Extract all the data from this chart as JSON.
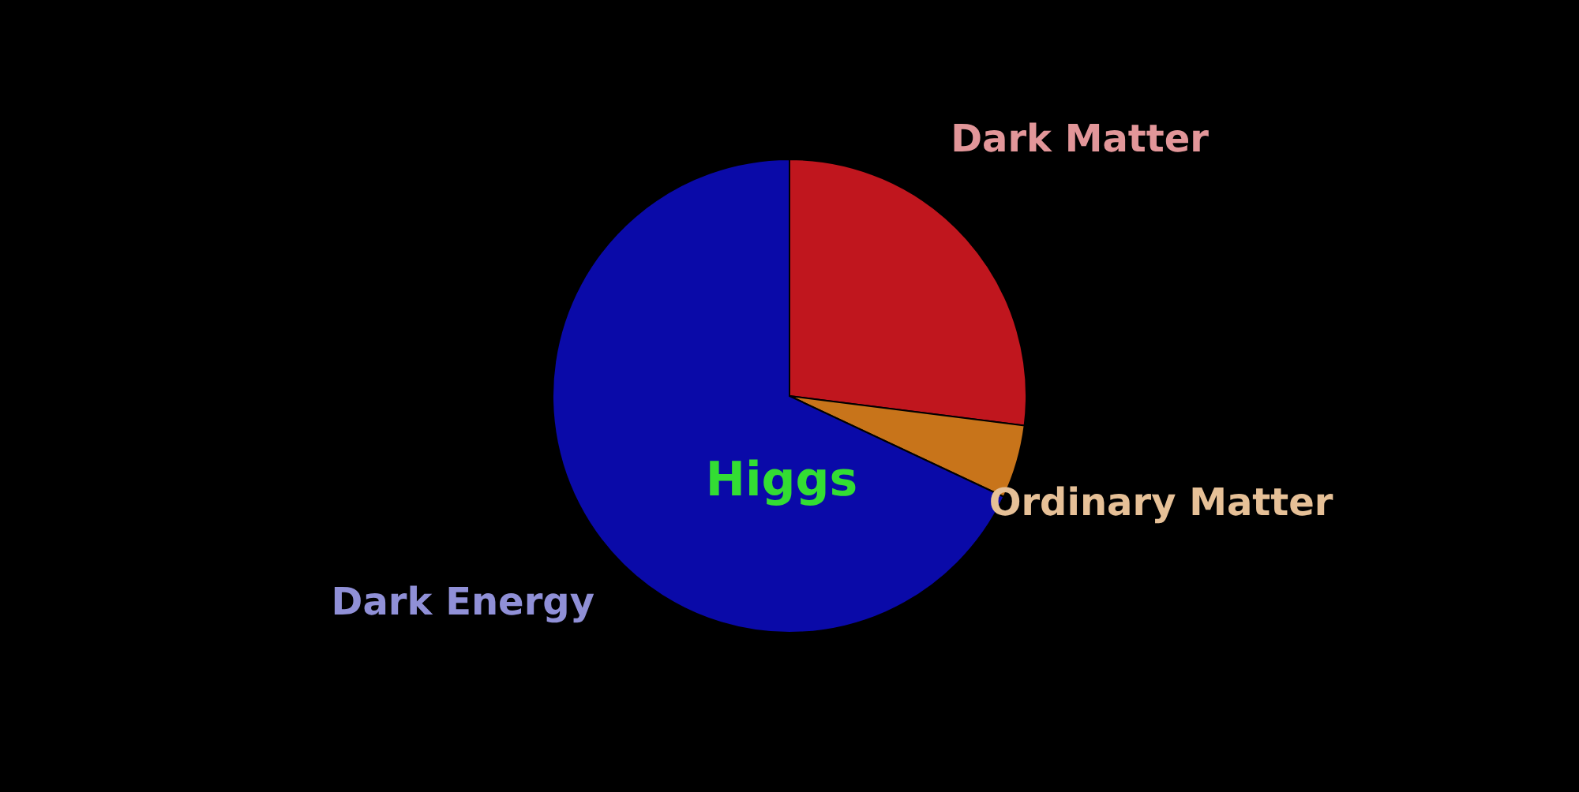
{
  "chart_data": {
    "type": "pie",
    "categories": [
      "Dark Matter",
      "Ordinary Matter",
      "Dark Energy"
    ],
    "values": [
      27,
      5,
      68
    ],
    "colors": [
      "#c0161e",
      "#c8741a",
      "#0a0aa8"
    ],
    "legend": false,
    "annotations": [
      {
        "text": "Higgs"
      }
    ]
  }
}
